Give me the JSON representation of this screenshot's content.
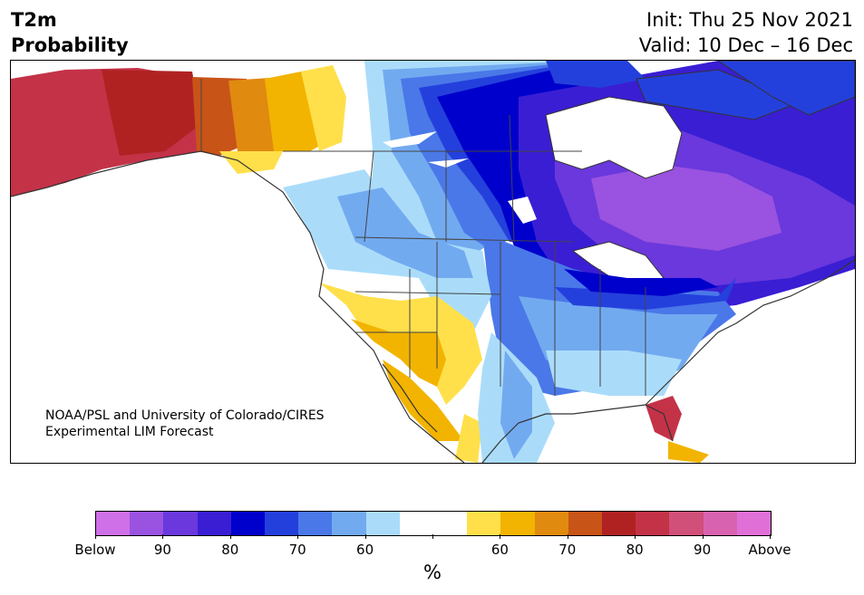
{
  "header": {
    "title_line1": "T2m",
    "title_line2": "Probability",
    "init_line": "Init: Thu 25 Nov 2021",
    "valid_line": "Valid: 10 Dec – 16 Dec"
  },
  "map": {
    "credit_line1": "NOAA/PSL and University of Colorado/CIRES",
    "credit_line2": "Experimental LIM Forecast"
  },
  "colorbar": {
    "colors": [
      "#d070e8",
      "#9a52e0",
      "#6a38dc",
      "#3a1ed4",
      "#0000cc",
      "#2440dc",
      "#4a78e8",
      "#72aaf0",
      "#aadcfa",
      "#ffffff",
      "#ffffff",
      "#ffe04a",
      "#f2b400",
      "#e08a10",
      "#c85418",
      "#b02222",
      "#c43248",
      "#d0507a",
      "#d862b0",
      "#e070d8"
    ],
    "tick_labels": [
      "Below",
      "90",
      "80",
      "70",
      "60",
      "",
      "60",
      "70",
      "80",
      "90",
      "Above"
    ],
    "unit": "%"
  }
}
